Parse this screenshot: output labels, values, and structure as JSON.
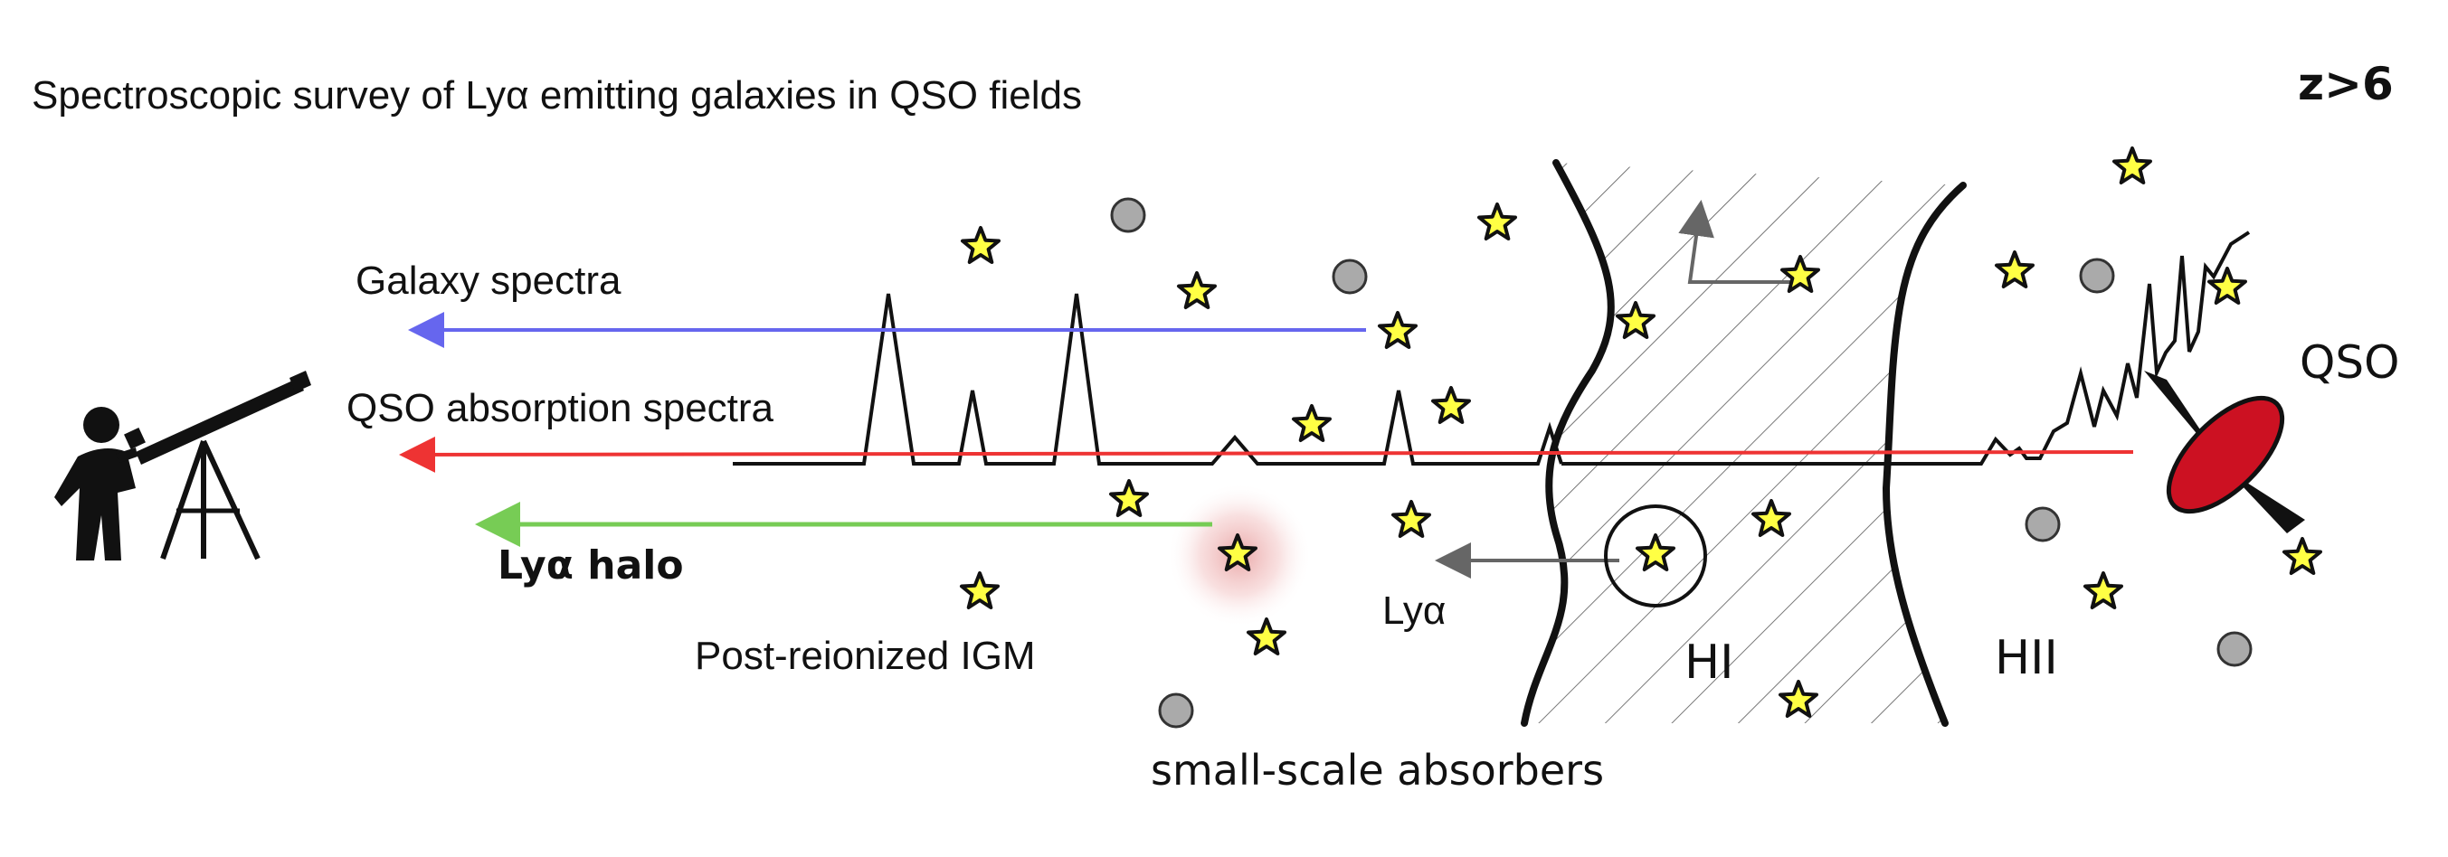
{
  "title": "Spectroscopic survey of Lyα emitting galaxies in QSO fields",
  "redshift_label": "z>6",
  "labels": {
    "galaxy_spectra": "Galaxy spectra",
    "qso_absorption_spectra": "QSO absorption spectra",
    "lya_halo": "Lyα halo",
    "post_reionized_igm": "Post-reionized IGM",
    "small_scale_absorbers": "small-scale absorbers",
    "lya": "Lyα",
    "hi_region": "HI",
    "hii_region": "HII",
    "qso": "QSO"
  },
  "colors": {
    "galaxy_spectra_arrow": "#6666ee",
    "qso_spectra_arrow": "#ee3333",
    "lya_halo_arrow": "#77cc55",
    "star_fill": "#ffff44",
    "absorber_fill": "#aaaaaa",
    "qso_disk": "#cc1122",
    "halo_glow": "#e08080"
  },
  "icons": {
    "observer": "observer-with-telescope-icon",
    "galaxy": "star-icon",
    "absorber": "circle-icon",
    "qso": "quasar-icon"
  }
}
